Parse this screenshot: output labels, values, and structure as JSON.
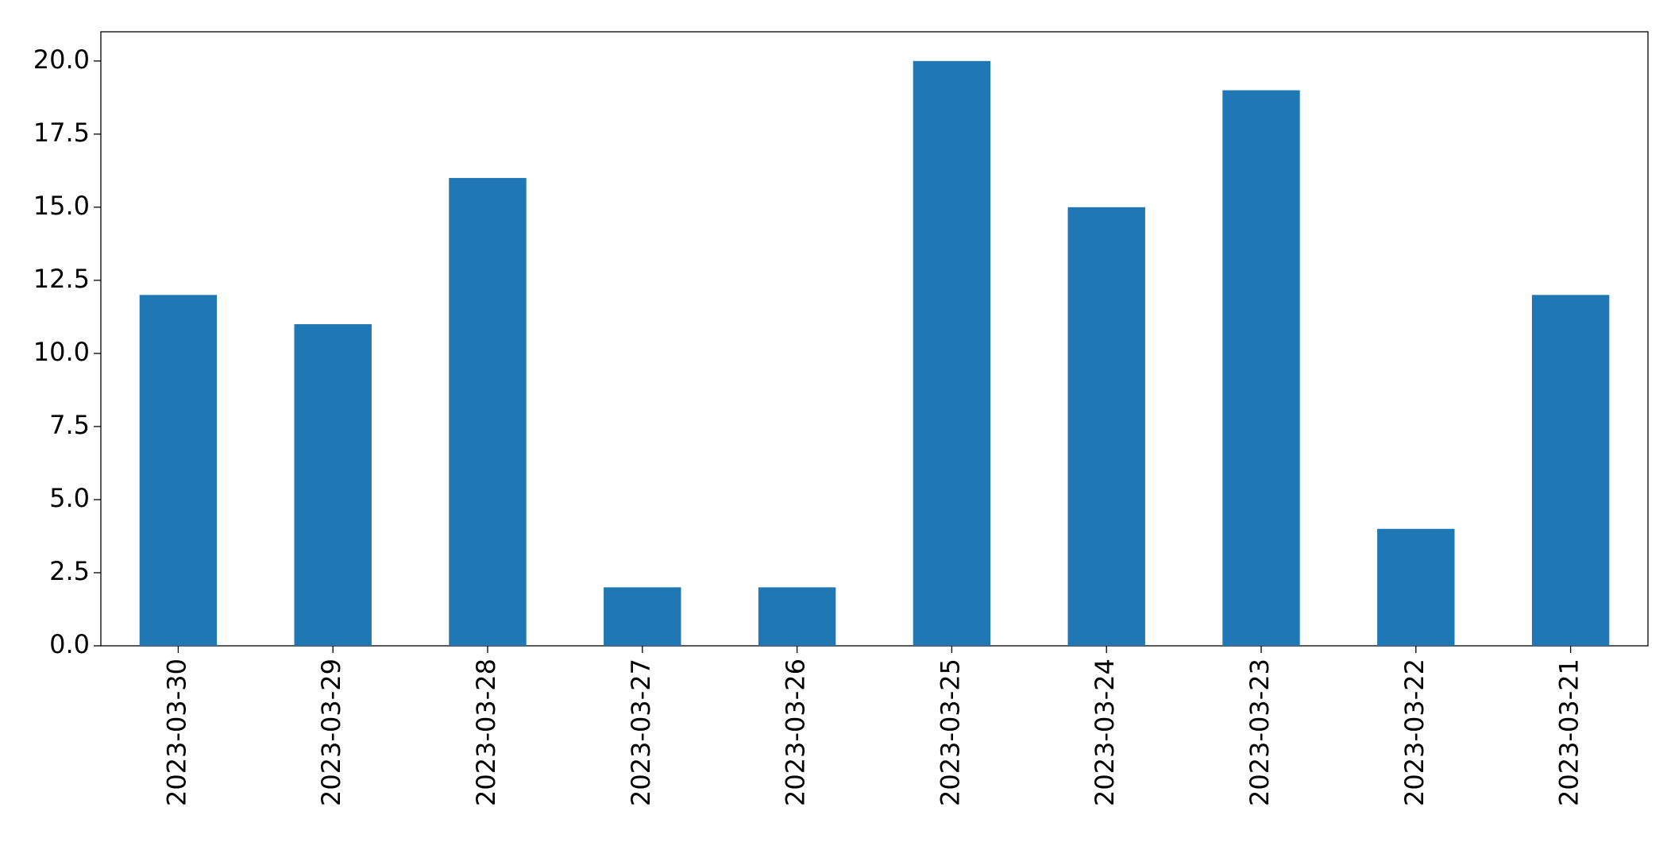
{
  "chart_data": {
    "type": "bar",
    "categories": [
      "2023-03-30",
      "2023-03-29",
      "2023-03-28",
      "2023-03-27",
      "2023-03-26",
      "2023-03-25",
      "2023-03-24",
      "2023-03-23",
      "2023-03-22",
      "2023-03-21"
    ],
    "values": [
      12,
      11,
      16,
      2,
      2,
      20,
      15,
      19,
      4,
      12
    ],
    "color": "#1f77b4",
    "ylim": [
      0,
      21
    ],
    "yticks": [
      {
        "value": 0,
        "label": "0.0"
      },
      {
        "value": 2.5,
        "label": "2.5"
      },
      {
        "value": 5,
        "label": "5.0"
      },
      {
        "value": 7.5,
        "label": "7.5"
      },
      {
        "value": 10,
        "label": "10.0"
      },
      {
        "value": 12.5,
        "label": "12.5"
      },
      {
        "value": 15,
        "label": "15.0"
      },
      {
        "value": 17.5,
        "label": "17.5"
      },
      {
        "value": 20,
        "label": "20.0"
      }
    ],
    "grid": false
  }
}
